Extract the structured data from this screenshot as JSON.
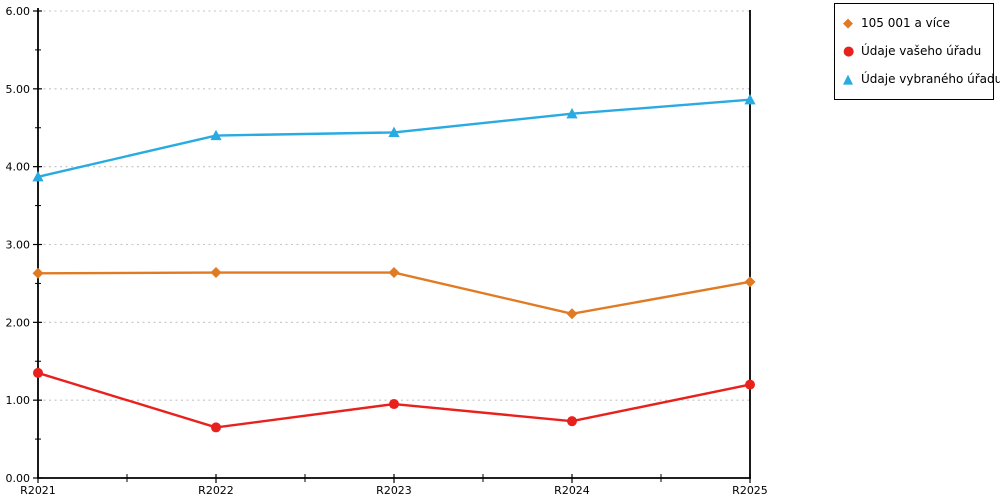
{
  "chart_data": {
    "type": "line",
    "categories": [
      "R2021",
      "R2022",
      "R2023",
      "R2024",
      "R2025"
    ],
    "series": [
      {
        "name": "105 001 a více",
        "marker": "diamond",
        "color": "#E07B24",
        "values": [
          2.63,
          2.64,
          2.64,
          2.11,
          2.52
        ]
      },
      {
        "name": "Údaje vašeho úřadu",
        "marker": "circle",
        "color": "#E8211D",
        "values": [
          1.35,
          0.65,
          0.95,
          0.73,
          1.2
        ]
      },
      {
        "name": "Údaje vybraného úřadu",
        "marker": "triangle",
        "color": "#29ABE2",
        "values": [
          3.87,
          4.4,
          4.44,
          4.68,
          4.86
        ]
      }
    ],
    "title": "",
    "xlabel": "",
    "ylabel": "",
    "ylim": [
      0,
      6
    ],
    "ytick_labels": [
      "0.00",
      "1.00",
      "2.00",
      "3.00",
      "4.00",
      "5.00",
      "6.00"
    ],
    "grid": "horizontal-dotted",
    "legend_position": "top-right",
    "colors": {
      "grid": "#c4c4c4",
      "axis": "#000000",
      "background": "#ffffff"
    }
  }
}
